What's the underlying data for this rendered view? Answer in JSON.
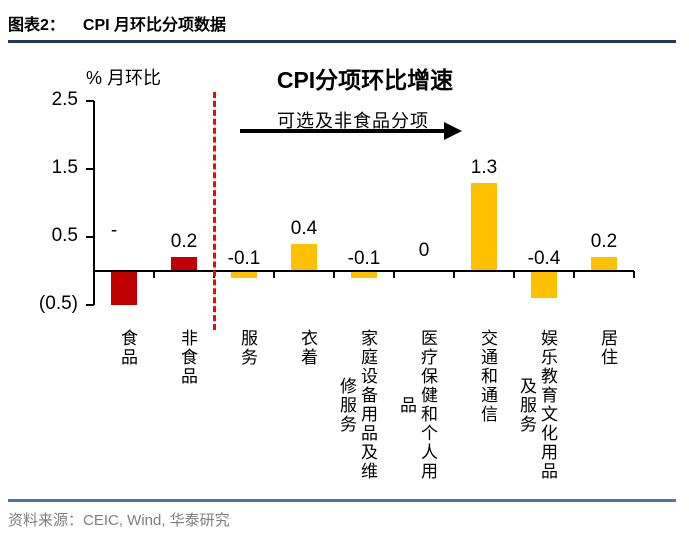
{
  "header": {
    "prefix": "图表2：",
    "title": "CPI 月环比分项数据"
  },
  "chart_data": {
    "type": "bar",
    "title": "CPI分项环比增速",
    "ylabel": "% 月环比",
    "annotation": "可选及非食品分项",
    "ylim": [
      -0.5,
      2.5
    ],
    "grid": false,
    "legend": null,
    "ytick_values": [
      2.5,
      1.5,
      0.5,
      -0.5
    ],
    "ytick_labels": [
      "2.5",
      "1.5",
      "0.5",
      "(0.5)"
    ],
    "categories": [
      "食品",
      "非食品",
      "服务",
      "衣着",
      "家庭设备用品及维修服务",
      "医疗保健和个人用品",
      "交通和通信",
      "娱乐教育文化用品及服务",
      "居住"
    ],
    "category_columns": [
      [
        "食品"
      ],
      [
        "非食品"
      ],
      [
        "服务"
      ],
      [
        "衣着"
      ],
      [
        "家庭设备用品及维",
        "修服务"
      ],
      [
        "医疗保健和个人用",
        "品"
      ],
      [
        "交通和通信"
      ],
      [
        "娱乐教育文化用品",
        "及服务"
      ],
      [
        "居住"
      ]
    ],
    "values": [
      -0.5,
      0.2,
      -0.1,
      0.4,
      -0.1,
      0,
      1.3,
      -0.4,
      0.2
    ],
    "value_labels": [
      "-",
      "0.2",
      "-0.1",
      "0.4",
      "-0.1",
      "0",
      "1.3",
      "-0.4",
      "0.2"
    ],
    "bar_colors": [
      "#C00000",
      "#C00000",
      "#FFC000",
      "#FFC000",
      "#FFC000",
      "#FFC000",
      "#FFC000",
      "#FFC000",
      "#FFC000"
    ],
    "separator_color": "#FF0000"
  },
  "footer": {
    "text": "资料来源：CEIC, Wind, 华泰研究"
  },
  "colors": {
    "header_rule": "#1F3864",
    "footer_rule": "#4C74A6",
    "axis": "#000000",
    "negative_red": "#C00000",
    "amber": "#FFC000",
    "footer_text": "#7F7F7F"
  }
}
